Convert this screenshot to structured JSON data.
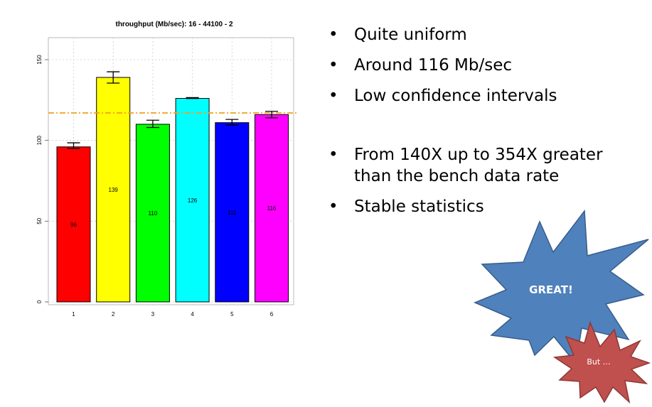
{
  "chart_data": {
    "type": "bar",
    "title": "throughput (Mb/sec):  16 - 44100 - 2",
    "categories": [
      "1",
      "2",
      "3",
      "4",
      "5",
      "6"
    ],
    "values": [
      96,
      139,
      110,
      126,
      111,
      116
    ],
    "value_labels": [
      "96",
      "139",
      "110",
      "126",
      "111",
      "116"
    ],
    "error_bars": [
      [
        95,
        98.5
      ],
      [
        135.5,
        142.5
      ],
      [
        108,
        112.5
      ],
      [
        126,
        126.5
      ],
      [
        109.5,
        113
      ],
      [
        114,
        118
      ]
    ],
    "bar_colors": [
      "#ff0000",
      "#ffff00",
      "#00ff00",
      "#00ffff",
      "#0000ff",
      "#ff00ff"
    ],
    "reference_line": {
      "value": 117,
      "color": "#f0a020",
      "style": "dash-dot"
    },
    "ylim": [
      0,
      150
    ],
    "yticks": [
      0,
      50,
      100,
      150
    ],
    "grid": true,
    "xlabel": "",
    "ylabel": ""
  },
  "bullets": [
    "Quite uniform",
    "Around 116 Mb/sec",
    "Low confidence intervals",
    "From 140X up to 354X greater than the bench data rate",
    "Stable statistics"
  ],
  "callouts": {
    "great": {
      "text": "GREAT!",
      "color": "#4f81bd",
      "outline": "#385d8a"
    },
    "but": {
      "text": "But …",
      "color": "#c0504d",
      "outline": "#8c3836"
    }
  }
}
